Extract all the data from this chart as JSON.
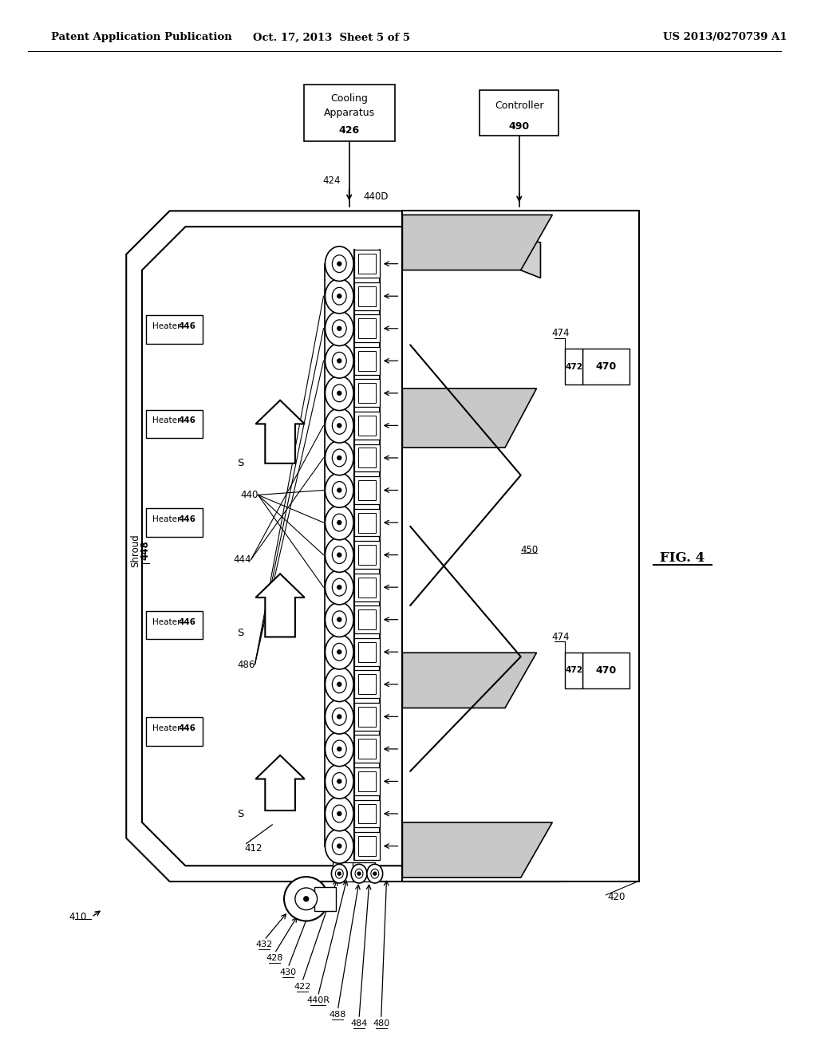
{
  "header_left": "Patent Application Publication",
  "header_center": "Oct. 17, 2013  Sheet 5 of 5",
  "header_right": "US 2013/0270739 A1",
  "fig_label": "FIG. 4",
  "bg_color": "#ffffff",
  "line_color": "#000000"
}
